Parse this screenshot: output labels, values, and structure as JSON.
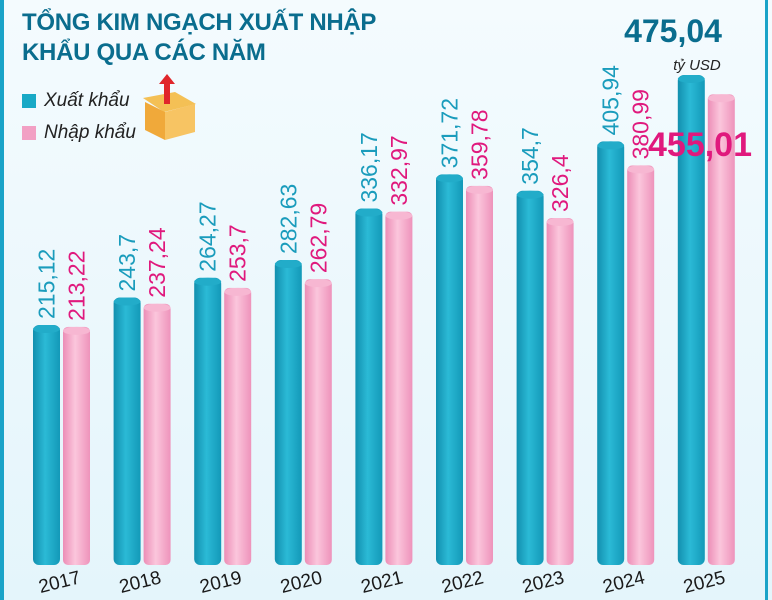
{
  "chart_data": {
    "type": "bar",
    "title": "TỔNG KIM NGẠCH XUẤT NHẬP KHẨU QUA CÁC NĂM",
    "unit": "tỷ USD",
    "categories": [
      "2017",
      "2018",
      "2019",
      "2020",
      "2021",
      "2022",
      "2023",
      "2024",
      "2025"
    ],
    "series": [
      {
        "name": "Xuất khẩu",
        "color": "#19a9c6",
        "values": [
          215.12,
          243.7,
          264.27,
          282.63,
          336.17,
          371.72,
          354.7,
          405.94,
          475.04
        ],
        "labels": [
          "215,12",
          "243,7",
          "264,27",
          "282,63",
          "336,17",
          "371,72",
          "354,7",
          "405,94",
          "475,04"
        ]
      },
      {
        "name": "Nhập khẩu",
        "color": "#f2a0c4",
        "values": [
          213.22,
          237.24,
          253.7,
          262.79,
          332.97,
          359.78,
          326.4,
          380.99,
          455.01
        ],
        "labels": [
          "213,22",
          "237,24",
          "253,7",
          "262,79",
          "332,97",
          "359,78",
          "326,4",
          "380,99",
          "455,01"
        ]
      }
    ],
    "legend": "top-left",
    "grid": false
  },
  "colors": {
    "title": "#0a6d8e",
    "export_label": "#1a9cbc",
    "import_label": "#e0197d"
  }
}
